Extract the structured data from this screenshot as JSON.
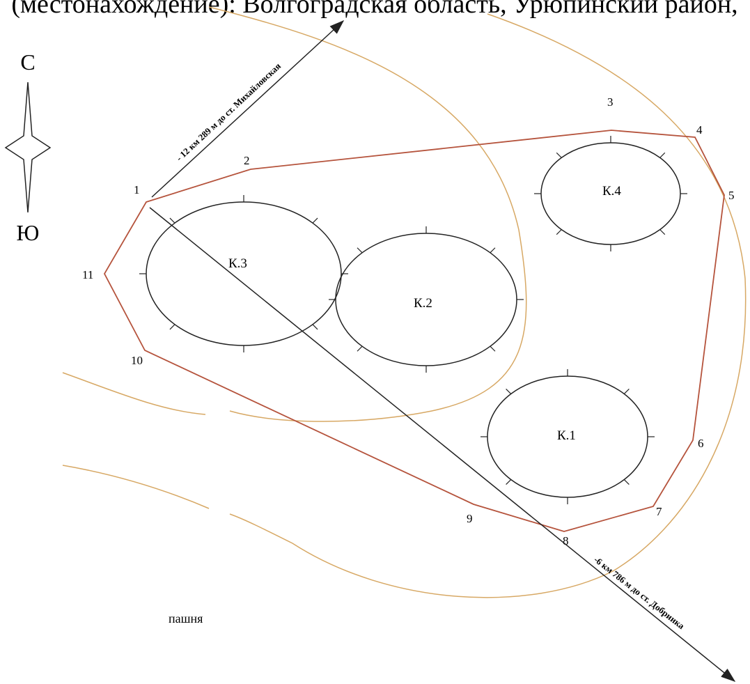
{
  "header": {
    "text": "(местонахождение): Волгоградская область, Урюпинский район,"
  },
  "compass": {
    "north": "С",
    "south": "Ю"
  },
  "points": [
    "1",
    "2",
    "3",
    "4",
    "5",
    "6",
    "7",
    "8",
    "9",
    "10",
    "11"
  ],
  "circles": [
    "К.1",
    "К.2",
    "К.3",
    "К.4"
  ],
  "roads": [
    "- 12 км 289 м до ст. Михайловская",
    "-6 км 786 м до ст. Добринка"
  ],
  "land_label": "пашня"
}
